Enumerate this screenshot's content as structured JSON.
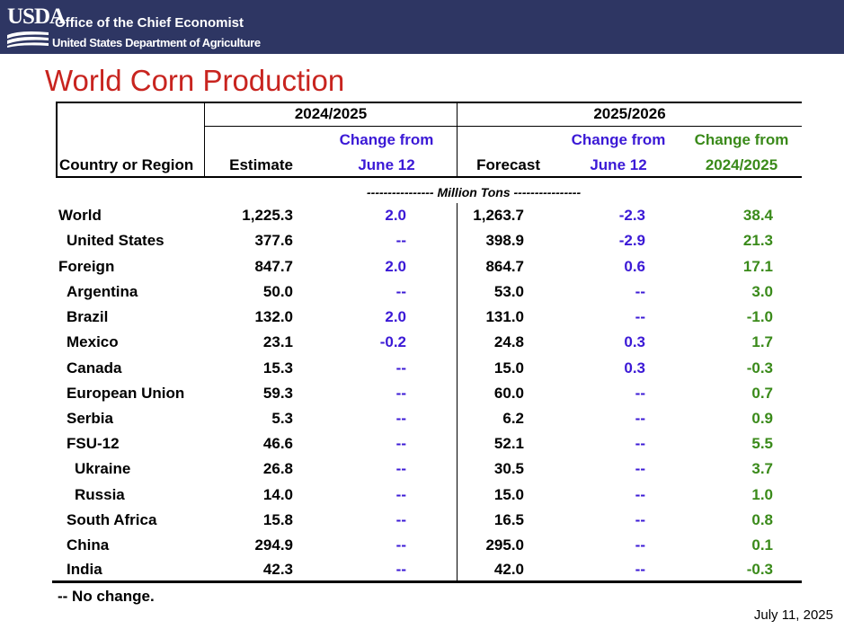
{
  "header": {
    "logo_text": "USDA",
    "office": "Office of the Chief Economist",
    "department": "United States Department of Agriculture"
  },
  "title": "World Corn Production",
  "table": {
    "group_2024": "2024/2025",
    "group_2025": "2025/2026",
    "col_country": "Country or Region",
    "col_estimate": "Estimate",
    "col_change_june_a1": "Change from",
    "col_change_june_a2": "June 12",
    "col_forecast": "Forecast",
    "col_change_june_b1": "Change from",
    "col_change_june_b2": "June 12",
    "col_change_prev1": "Change from",
    "col_change_prev2": "2024/2025",
    "units": "---------------- Million Tons ----------------",
    "rows": [
      {
        "name": "World",
        "indent": 0,
        "est": "1,225.3",
        "chg_a": "2.0",
        "fc": "1,263.7",
        "chg_b": "-2.3",
        "chg_prev": "38.4"
      },
      {
        "name": "United States",
        "indent": 1,
        "est": "377.6",
        "chg_a": "--",
        "fc": "398.9",
        "chg_b": "-2.9",
        "chg_prev": "21.3"
      },
      {
        "name": "Foreign",
        "indent": 0,
        "est": "847.7",
        "chg_a": "2.0",
        "fc": "864.7",
        "chg_b": "0.6",
        "chg_prev": "17.1"
      },
      {
        "name": "Argentina",
        "indent": 1,
        "est": "50.0",
        "chg_a": "--",
        "fc": "53.0",
        "chg_b": "--",
        "chg_prev": "3.0"
      },
      {
        "name": "Brazil",
        "indent": 1,
        "est": "132.0",
        "chg_a": "2.0",
        "fc": "131.0",
        "chg_b": "--",
        "chg_prev": "-1.0"
      },
      {
        "name": "Mexico",
        "indent": 1,
        "est": "23.1",
        "chg_a": "-0.2",
        "fc": "24.8",
        "chg_b": "0.3",
        "chg_prev": "1.7"
      },
      {
        "name": "Canada",
        "indent": 1,
        "est": "15.3",
        "chg_a": "--",
        "fc": "15.0",
        "chg_b": "0.3",
        "chg_prev": "-0.3"
      },
      {
        "name": "European Union",
        "indent": 1,
        "est": "59.3",
        "chg_a": "--",
        "fc": "60.0",
        "chg_b": "--",
        "chg_prev": "0.7"
      },
      {
        "name": "Serbia",
        "indent": 1,
        "est": "5.3",
        "chg_a": "--",
        "fc": "6.2",
        "chg_b": "--",
        "chg_prev": "0.9"
      },
      {
        "name": "FSU-12",
        "indent": 1,
        "est": "46.6",
        "chg_a": "--",
        "fc": "52.1",
        "chg_b": "--",
        "chg_prev": "5.5"
      },
      {
        "name": "Ukraine",
        "indent": 2,
        "est": "26.8",
        "chg_a": "--",
        "fc": "30.5",
        "chg_b": "--",
        "chg_prev": "3.7"
      },
      {
        "name": "Russia",
        "indent": 2,
        "est": "14.0",
        "chg_a": "--",
        "fc": "15.0",
        "chg_b": "--",
        "chg_prev": "1.0"
      },
      {
        "name": "South Africa",
        "indent": 1,
        "est": "15.8",
        "chg_a": "--",
        "fc": "16.5",
        "chg_b": "--",
        "chg_prev": "0.8"
      },
      {
        "name": "China",
        "indent": 1,
        "est": "294.9",
        "chg_a": "--",
        "fc": "295.0",
        "chg_b": "--",
        "chg_prev": "0.1"
      },
      {
        "name": "India",
        "indent": 1,
        "est": "42.3",
        "chg_a": "--",
        "fc": "42.0",
        "chg_b": "--",
        "chg_prev": "-0.3"
      }
    ]
  },
  "note": "-- No change.",
  "date": "July 11, 2025"
}
